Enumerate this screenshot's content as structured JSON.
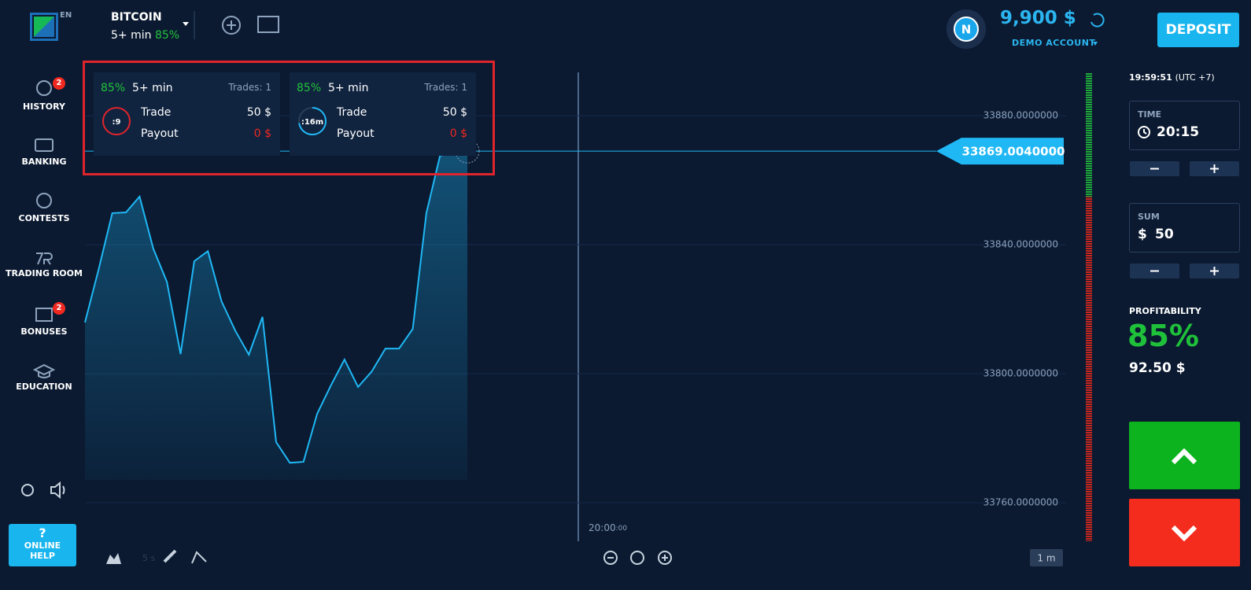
{
  "header": {
    "logo_lang": "EN",
    "asset": "BITCOIN",
    "asset_duration": "5+ min",
    "asset_payout": "85%",
    "avatar": "N",
    "balance": "9,900 $",
    "account": "DEMO ACCOUNT",
    "deposit": "DEPOSIT"
  },
  "sidebar": {
    "items": [
      {
        "label": "HISTORY",
        "badge": "2"
      },
      {
        "label": "BANKING"
      },
      {
        "label": "CONTESTS"
      },
      {
        "label": "TRADING ROOM"
      },
      {
        "label": "BONUSES",
        "badge": "2"
      },
      {
        "label": "EDUCATION"
      }
    ],
    "help_icon": "?",
    "help_label": [
      "ONLINE",
      "HELP"
    ]
  },
  "trades": [
    {
      "payout": "85%",
      "duration": "5+ min",
      "count": "Trades: 1",
      "timer": ":9",
      "trade_label": "Trade",
      "trade_value": "50 $",
      "payout_label": "Payout",
      "payout_value": "0 $"
    },
    {
      "payout": "85%",
      "duration": "5+ min",
      "count": "Trades: 1",
      "timer": ":16m",
      "trade_label": "Trade",
      "trade_value": "50 $",
      "payout_label": "Payout",
      "payout_value": "0 $"
    }
  ],
  "chart": {
    "type": "line",
    "values": [
      33815.9,
      33832.4,
      33849.8,
      33850.0,
      33854.9,
      33838.8,
      33828.5,
      33806.1,
      33834.9,
      33838.0,
      33822.4,
      33813.4,
      33805.9,
      33817.6,
      33778.8,
      33772.4,
      33772.7,
      33787.6,
      33796.3,
      33804.4,
      33795.9,
      33800.7,
      33807.8,
      33807.8,
      33813.9,
      33849.8,
      33867.6,
      33868.5,
      33869.0
    ],
    "color": "#1fb8f5",
    "ylim": [
      33747.6,
      33893.9
    ],
    "yticks": [
      {
        "value": 33880,
        "label": "33880.0000000"
      },
      {
        "value": 33840,
        "label": "33840.0000000"
      },
      {
        "value": 33800,
        "label": "33800.0000000"
      },
      {
        "value": 33760,
        "label": "33760.0000000"
      }
    ],
    "grid": true,
    "current_price": {
      "value": 33869.004,
      "label": "33869.0040000"
    },
    "time_marker": "20:00",
    "time_marker_seconds": ":00",
    "interval": "5 s",
    "timeframe": "1 m"
  },
  "panel": {
    "clock": "19:59:51",
    "timezone": "(UTC +7)",
    "time_label": "TIME",
    "time_value": "20:15",
    "sum_label": "SUM",
    "sum_currency": "$",
    "sum_value": "50",
    "profitability_label": "PROFITABILITY",
    "profitability": "85%",
    "profit": "92.50 $"
  }
}
